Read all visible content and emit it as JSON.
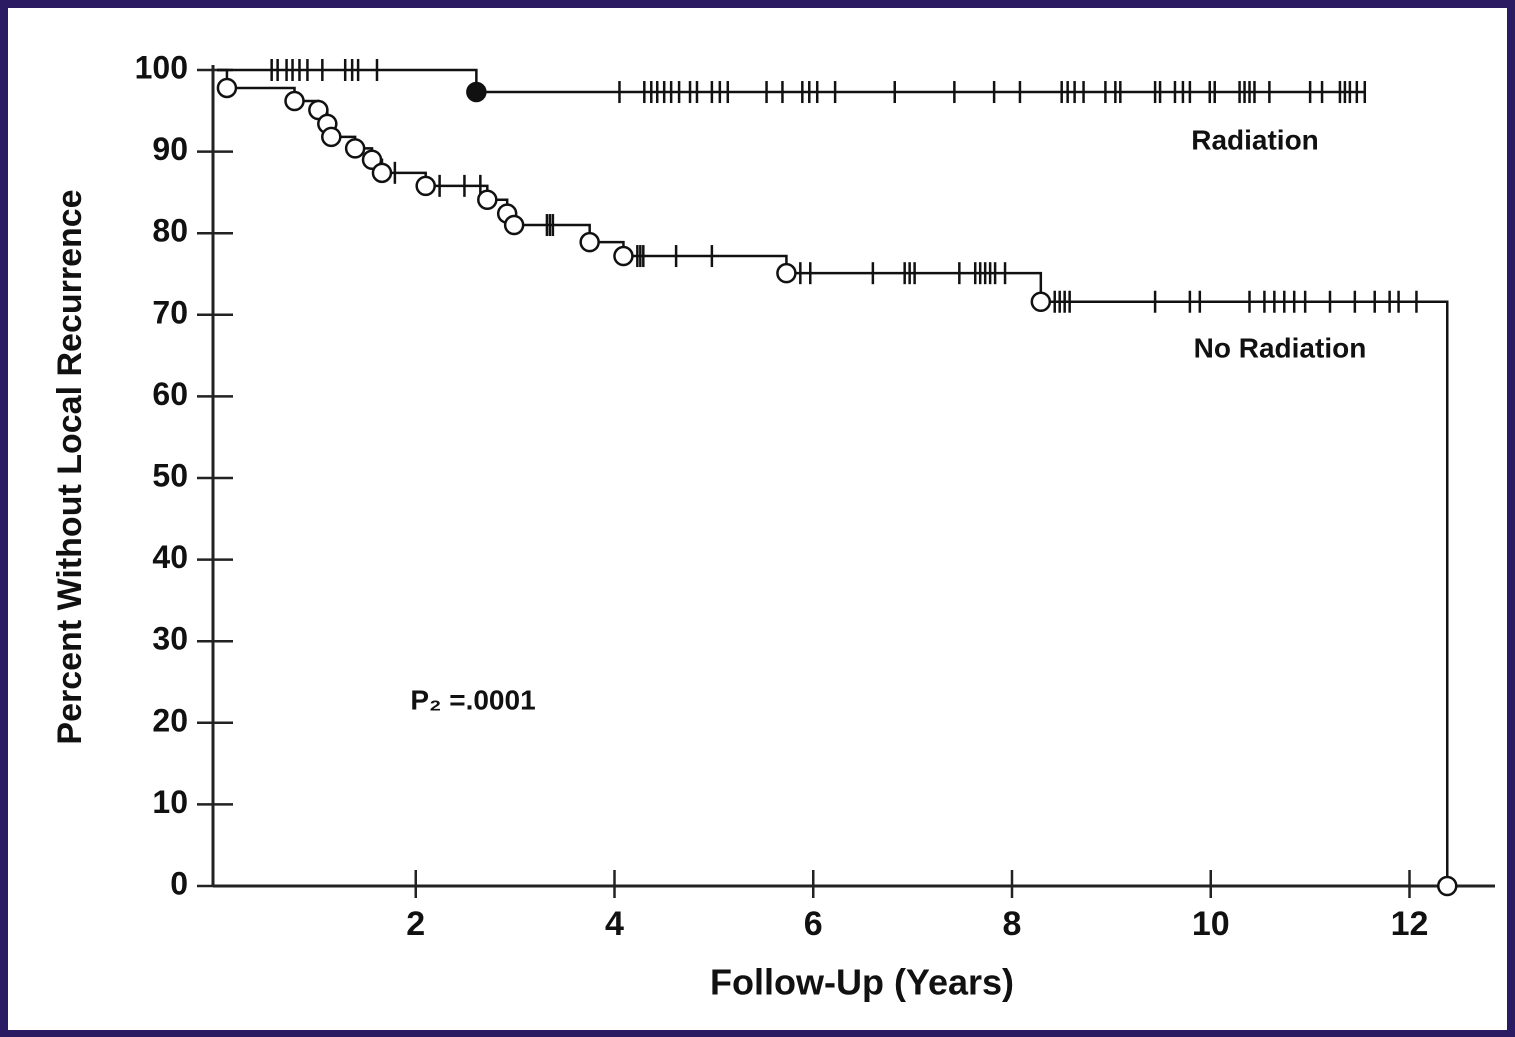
{
  "chart_data": {
    "type": "survival",
    "x_label": "Follow-Up (Years)",
    "y_label": "Percent Without Local Recurrence",
    "annotation": "P₂ =.0001",
    "xlim": [
      0,
      12.8
    ],
    "ylim": [
      0,
      100
    ],
    "xticks": [
      2,
      4,
      6,
      8,
      10,
      12
    ],
    "yticks": [
      0,
      10,
      20,
      30,
      40,
      50,
      60,
      70,
      80,
      90,
      100
    ],
    "series": [
      {
        "name": "Radiation",
        "color": "#111111",
        "marker": "filled",
        "x": [
          0,
          2.61
        ],
        "values": [
          100,
          97.3
        ],
        "censored": [
          0.55,
          0.61,
          0.7,
          0.76,
          0.83,
          0.91,
          1.06,
          1.29,
          1.36,
          1.42,
          1.61,
          4.05,
          4.3,
          4.37,
          4.43,
          4.5,
          4.57,
          4.65,
          4.76,
          4.83,
          4.98,
          5.06,
          5.14,
          5.53,
          5.69,
          5.89,
          5.96,
          6.04,
          6.22,
          6.82,
          7.42,
          7.82,
          8.08,
          8.5,
          8.56,
          8.63,
          8.72,
          8.94,
          9.04,
          9.09,
          9.44,
          9.49,
          9.64,
          9.72,
          9.79,
          9.99,
          10.04,
          10.29,
          10.34,
          10.39,
          10.44,
          10.59,
          11.0,
          11.12,
          11.3,
          11.35,
          11.4,
          11.47,
          11.55
        ]
      },
      {
        "name": "No Radiation",
        "color": "#111111",
        "marker": "open",
        "x": [
          0,
          0.1,
          0.78,
          1.02,
          1.11,
          1.15,
          1.39,
          1.56,
          1.66,
          2.1,
          2.72,
          2.92,
          2.99,
          3.75,
          4.09,
          5.73,
          8.29,
          12.38
        ],
        "values": [
          100,
          97.8,
          96.2,
          95.1,
          93.4,
          91.8,
          90.4,
          89.0,
          87.4,
          85.8,
          84.1,
          82.4,
          81.0,
          78.9,
          77.2,
          75.1,
          71.6,
          0
        ],
        "censored": [
          1.79,
          2.24,
          2.49,
          2.65,
          3.32,
          3.35,
          3.38,
          4.23,
          4.26,
          4.29,
          4.62,
          4.98,
          5.87,
          5.97,
          6.6,
          6.92,
          6.97,
          7.02,
          7.47,
          7.63,
          7.68,
          7.73,
          7.78,
          7.83,
          7.93,
          8.43,
          8.48,
          8.53,
          8.58,
          9.44,
          9.79,
          9.89,
          10.39,
          10.54,
          10.64,
          10.74,
          10.84,
          10.95,
          11.2,
          11.45,
          11.65,
          11.8,
          11.89,
          12.07
        ]
      }
    ]
  }
}
